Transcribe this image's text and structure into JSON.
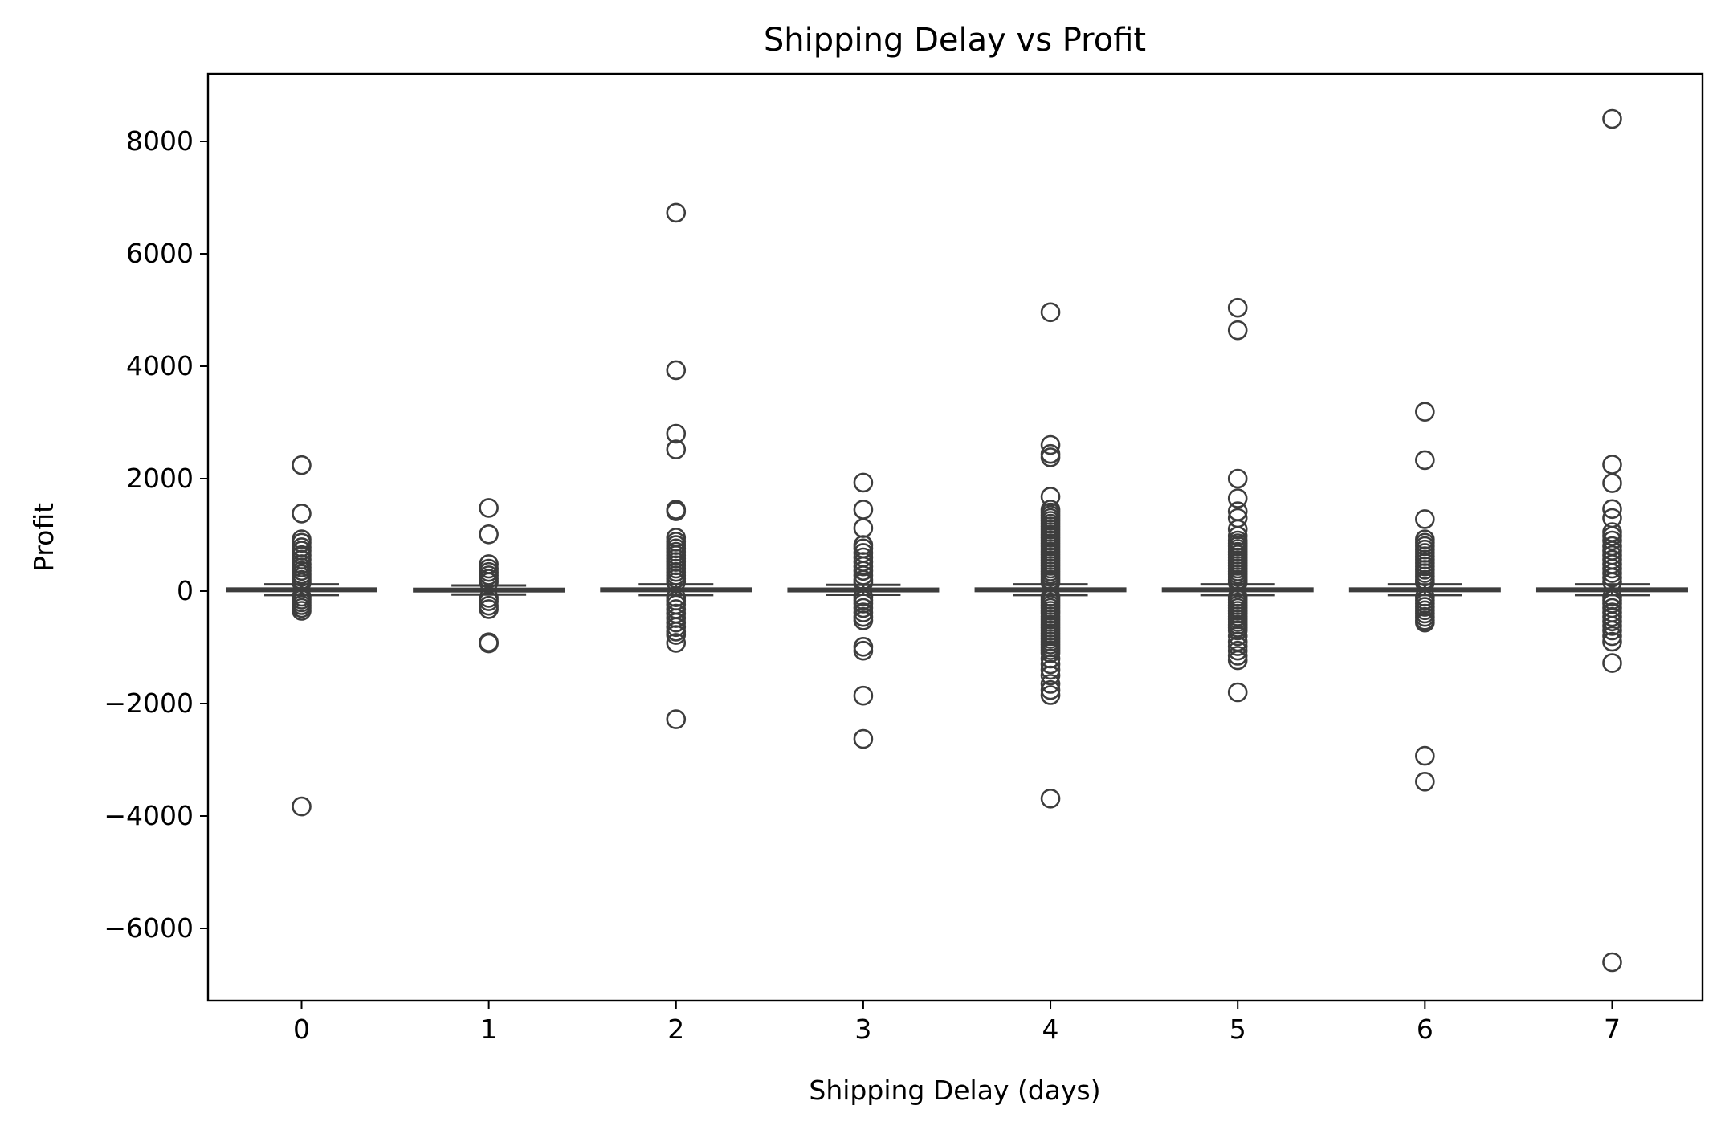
{
  "chart_data": {
    "type": "box",
    "title": "Shipping Delay vs Profit",
    "xlabel": "Shipping Delay (days)",
    "ylabel": "Profit",
    "categories": [
      "0",
      "1",
      "2",
      "3",
      "4",
      "5",
      "6",
      "7"
    ],
    "y_ticks": [
      -6000,
      -4000,
      -2000,
      0,
      2000,
      4000,
      6000,
      8000
    ],
    "ylim": [
      -7400,
      9200
    ],
    "grid": false,
    "box_color": "#3d3d3d",
    "boxes": [
      {
        "category": "0",
        "q1": 2,
        "median": 10,
        "q3": 45,
        "whisker_low": -70,
        "whisker_high": 120,
        "outliers": [
          2240,
          1380,
          920,
          860,
          780,
          720,
          640,
          560,
          480,
          420,
          360,
          300,
          250,
          200,
          150,
          -100,
          -150,
          -200,
          -250,
          -300,
          -350,
          -3830
        ]
      },
      {
        "category": "1",
        "q1": 2,
        "median": 9,
        "q3": 40,
        "whisker_low": -60,
        "whisker_high": 100,
        "outliers": [
          1480,
          1010,
          480,
          400,
          340,
          280,
          220,
          160,
          -120,
          -180,
          -260,
          -320,
          -910,
          -930
        ]
      },
      {
        "category": "2",
        "q1": 2,
        "median": 10,
        "q3": 45,
        "whisker_low": -70,
        "whisker_high": 120,
        "outliers": [
          6730,
          3930,
          2800,
          2520,
          1450,
          1420,
          950,
          880,
          820,
          760,
          700,
          640,
          580,
          520,
          460,
          400,
          340,
          280,
          220,
          160,
          -110,
          -170,
          -240,
          -320,
          -400,
          -480,
          -560,
          -640,
          -720,
          -780,
          -920,
          -2280
        ]
      },
      {
        "category": "3",
        "q1": 2,
        "median": 10,
        "q3": 42,
        "whisker_low": -65,
        "whisker_high": 110,
        "outliers": [
          1930,
          1450,
          1120,
          820,
          760,
          680,
          600,
          520,
          440,
          360,
          280,
          200,
          150,
          -100,
          -160,
          -220,
          -300,
          -380,
          -460,
          -520,
          -990,
          -1060,
          -1860,
          -2630
        ]
      },
      {
        "category": "4",
        "q1": 2,
        "median": 10,
        "q3": 45,
        "whisker_low": -70,
        "whisker_high": 120,
        "outliers": [
          4960,
          2600,
          2440,
          2380,
          1680,
          1450,
          1400,
          1350,
          1300,
          1250,
          1200,
          1150,
          1100,
          1050,
          1000,
          950,
          900,
          850,
          800,
          750,
          700,
          650,
          600,
          550,
          500,
          450,
          400,
          350,
          300,
          250,
          200,
          150,
          -100,
          -150,
          -200,
          -250,
          -300,
          -350,
          -400,
          -450,
          -500,
          -550,
          -600,
          -650,
          -700,
          -750,
          -800,
          -850,
          -900,
          -950,
          -1000,
          -1050,
          -1100,
          -1200,
          -1300,
          -1400,
          -1500,
          -1650,
          -1760,
          -1850,
          -3690
        ]
      },
      {
        "category": "5",
        "q1": 2,
        "median": 10,
        "q3": 45,
        "whisker_low": -70,
        "whisker_high": 120,
        "outliers": [
          5040,
          4640,
          2000,
          1650,
          1420,
          1300,
          1100,
          980,
          900,
          850,
          800,
          750,
          700,
          650,
          600,
          550,
          500,
          450,
          400,
          350,
          300,
          250,
          200,
          150,
          -100,
          -150,
          -200,
          -250,
          -300,
          -350,
          -400,
          -450,
          -500,
          -550,
          -600,
          -650,
          -700,
          -800,
          -900,
          -980,
          -1060,
          -1150,
          -1230,
          -1800
        ]
      },
      {
        "category": "6",
        "q1": 2,
        "median": 10,
        "q3": 45,
        "whisker_low": -70,
        "whisker_high": 120,
        "outliers": [
          3190,
          2330,
          1280,
          920,
          860,
          800,
          740,
          680,
          620,
          560,
          500,
          440,
          380,
          320,
          260,
          200,
          150,
          -100,
          -160,
          -220,
          -280,
          -340,
          -400,
          -460,
          -520,
          -560,
          -2930,
          -3390
        ]
      },
      {
        "category": "7",
        "q1": 2,
        "median": 10,
        "q3": 45,
        "whisker_low": -70,
        "whisker_high": 120,
        "outliers": [
          8400,
          2250,
          1920,
          1460,
          1300,
          1050,
          980,
          900,
          800,
          720,
          640,
          560,
          480,
          400,
          320,
          240,
          160,
          -100,
          -160,
          -220,
          -300,
          -380,
          -460,
          -540,
          -620,
          -700,
          -800,
          -900,
          -1280,
          -6600
        ]
      }
    ]
  }
}
